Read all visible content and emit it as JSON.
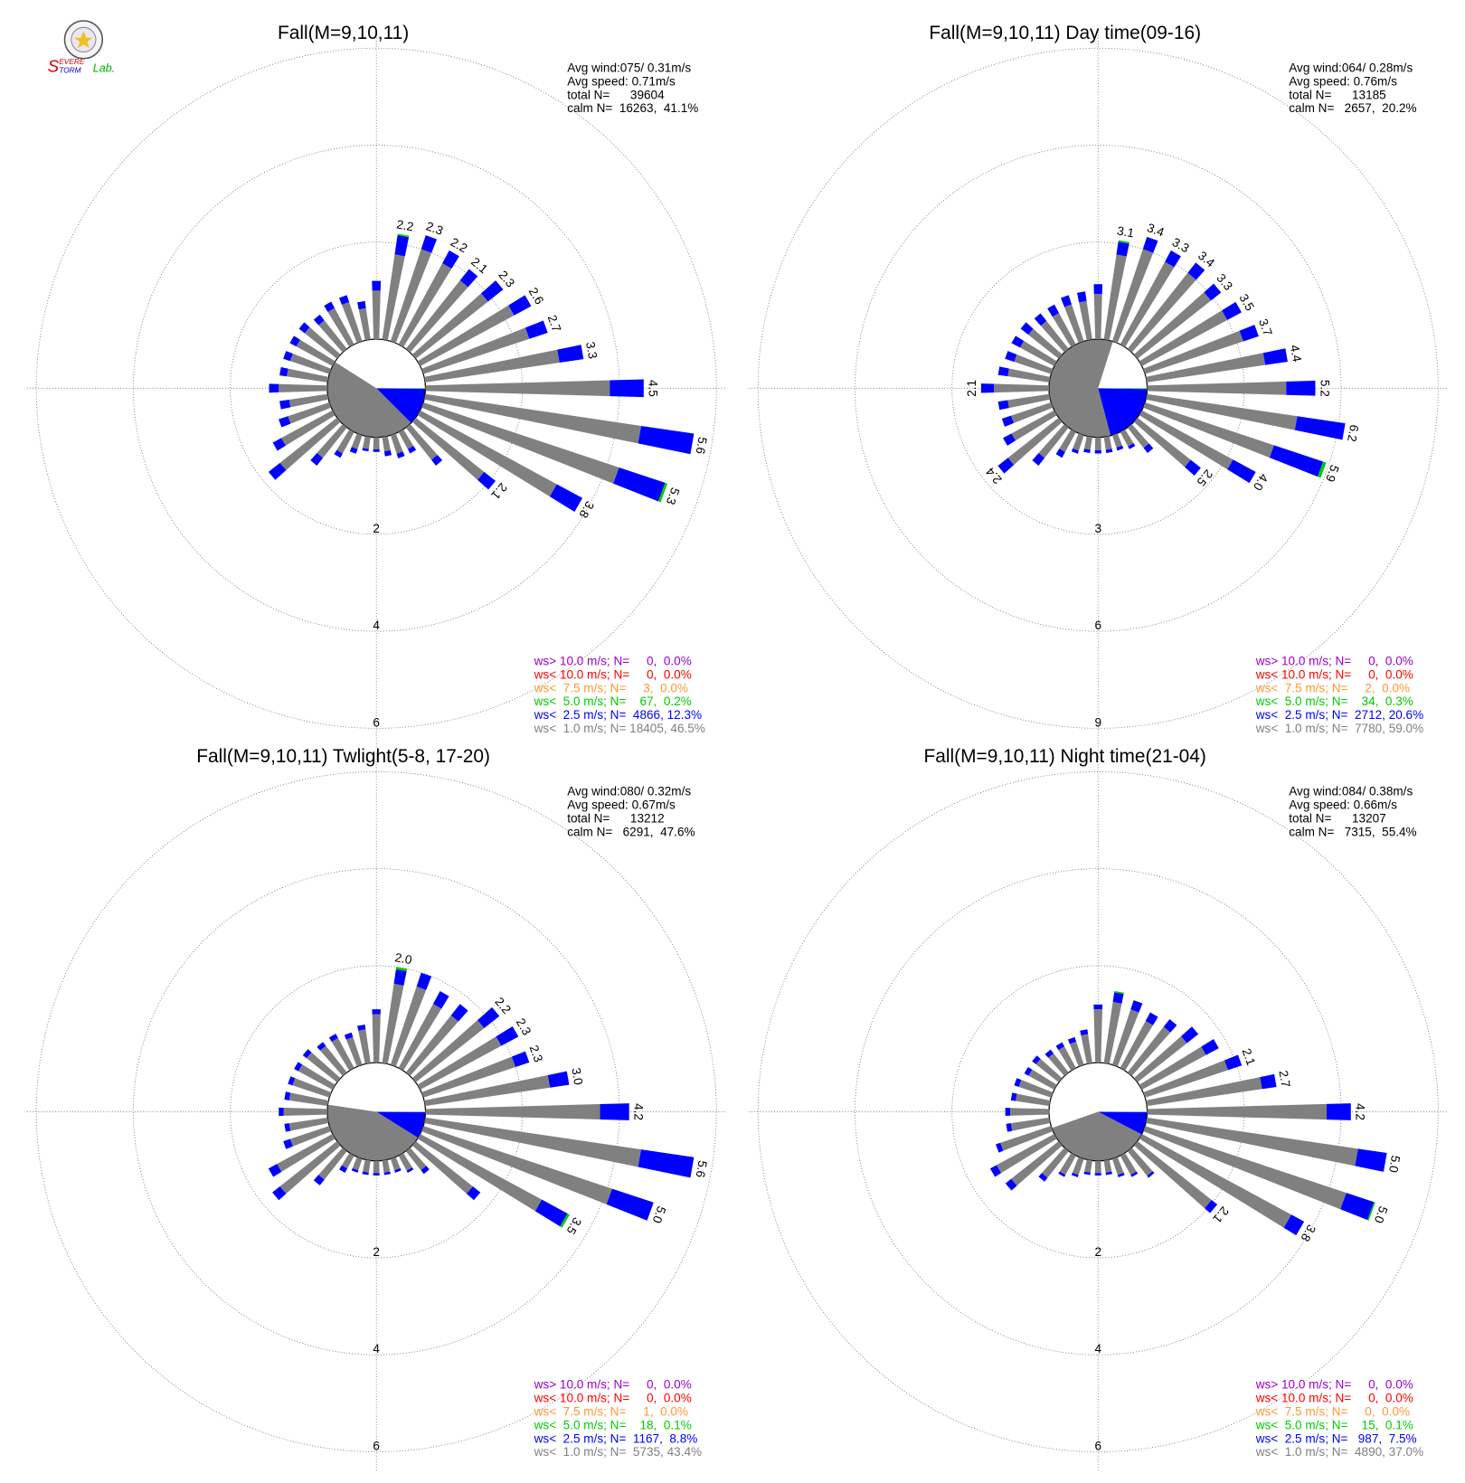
{
  "logo": {
    "line1": "EVERE",
    "line2": "TORM",
    "initial": "S",
    "lab": "Lab."
  },
  "chart_data": [
    {
      "type": "windrose",
      "title": "Fall(M=9,10,11)",
      "info": [
        "Avg wind:075/ 0.31m/s",
        "Avg speed: 0.71m/s",
        "total N=      39604",
        "calm N=  16263,  41.1%"
      ],
      "legend": [
        {
          "label": "ws> 10.0 m/s; N=     0,  0.0%",
          "value": 0.0,
          "color": "#9900cc"
        },
        {
          "label": "ws< 10.0 m/s; N=     0,  0.0%",
          "value": 0.0,
          "color": "#ff0000"
        },
        {
          "label": "ws<  7.5 m/s; N=     3,  0.0%",
          "value": 0.0,
          "color": "#ff9933"
        },
        {
          "label": "ws<  5.0 m/s; N=    67,  0.2%",
          "value": 0.2,
          "color": "#00cc00"
        },
        {
          "label": "ws<  2.5 m/s; N=  4866, 12.3%",
          "value": 12.3,
          "color": "#0000ff"
        },
        {
          "label": "ws<  1.0 m/s; N= 18405, 46.5%",
          "value": 46.5,
          "color": "#808080"
        }
      ],
      "x": [
        0,
        10,
        20,
        30,
        40,
        50,
        60,
        70,
        80,
        90,
        100,
        110,
        120,
        130,
        140,
        150,
        160,
        170,
        180,
        190,
        200,
        210,
        220,
        230,
        240,
        250,
        260,
        270,
        280,
        290,
        300,
        310,
        320,
        330,
        340,
        350
      ],
      "series": [
        {
          "color": "#808080",
          "values": [
            1.0,
            1.77,
            2.0,
            1.9,
            1.8,
            1.9,
            2.2,
            2.3,
            2.8,
            3.8,
            4.5,
            4.25,
            3.2,
            1.8,
            0.85,
            0.4,
            0.4,
            0.3,
            0.25,
            0.25,
            0.3,
            0.5,
            0.8,
            1.5,
            1.2,
            0.9,
            0.8,
            1.0,
            0.85,
            0.85,
            0.85,
            0.85,
            0.75,
            0.85,
            0.85,
            0.65
          ]
        },
        {
          "color": "#0000ff",
          "values": [
            0.2,
            0.4,
            0.3,
            0.3,
            0.3,
            0.4,
            0.4,
            0.4,
            0.5,
            0.7,
            1.1,
            1.0,
            0.6,
            0.3,
            0.15,
            0.1,
            0.1,
            0.1,
            0.05,
            0.05,
            0.1,
            0.1,
            0.2,
            0.3,
            0.2,
            0.2,
            0.2,
            0.2,
            0.15,
            0.15,
            0.15,
            0.15,
            0.15,
            0.15,
            0.15,
            0.15
          ]
        },
        {
          "color": "#00cc00",
          "values": [
            0,
            0.03,
            0,
            0,
            0,
            0,
            0,
            0,
            0,
            0,
            0,
            0.05,
            0,
            0,
            0,
            0,
            0,
            0,
            0,
            0,
            0,
            0,
            0,
            0,
            0,
            0,
            0,
            0,
            0,
            0,
            0,
            0,
            0,
            0,
            0,
            0
          ]
        }
      ],
      "bar_labels": [
        null,
        "2.2",
        "2.3",
        "2.2",
        "2.1",
        "2.3",
        "2.6",
        "2.7",
        "3.3",
        "4.5",
        "5.6",
        "5.3",
        "3.8",
        "2.1",
        null,
        null,
        null,
        null,
        null,
        null,
        null,
        null,
        null,
        null,
        null,
        null,
        null,
        null,
        null,
        null,
        null,
        null,
        null,
        null,
        null,
        null
      ],
      "rlim": [
        0,
        6
      ],
      "rticks": [
        2,
        4,
        6
      ]
    },
    {
      "type": "windrose",
      "title": "Fall(M=9,10,11) Day time(09-16)",
      "info": [
        "Avg wind:064/ 0.28m/s",
        "Avg speed: 0.76m/s",
        "total N=      13185",
        "calm N=   2657,  20.2%"
      ],
      "legend": [
        {
          "label": "ws> 10.0 m/s; N=     0,  0.0%",
          "value": 0.0,
          "color": "#9900cc"
        },
        {
          "label": "ws< 10.0 m/s; N=     0,  0.0%",
          "value": 0.0,
          "color": "#ff0000"
        },
        {
          "label": "ws<  7.5 m/s; N=     2,  0.0%",
          "value": 0.0,
          "color": "#ff9933"
        },
        {
          "label": "ws<  5.0 m/s; N=    34,  0.3%",
          "value": 0.3,
          "color": "#00cc00"
        },
        {
          "label": "ws<  2.5 m/s; N=  2712, 20.6%",
          "value": 20.6,
          "color": "#0000ff"
        },
        {
          "label": "ws<  1.0 m/s; N=  7780, 59.0%",
          "value": 59.0,
          "color": "#808080"
        }
      ],
      "x": [
        0,
        10,
        20,
        30,
        40,
        50,
        60,
        70,
        80,
        90,
        100,
        110,
        120,
        130,
        140,
        150,
        160,
        170,
        180,
        190,
        200,
        210,
        220,
        230,
        240,
        250,
        260,
        270,
        280,
        290,
        300,
        310,
        320,
        330,
        340,
        350
      ],
      "series": [
        {
          "color": "#808080",
          "values": [
            1.4,
            2.65,
            3.0,
            2.9,
            3.0,
            2.9,
            3.0,
            3.2,
            3.7,
            4.3,
            4.7,
            4.2,
            3.2,
            2.1,
            0.8,
            0.5,
            0.4,
            0.4,
            0.4,
            0.4,
            0.5,
            0.7,
            1.2,
            2.0,
            1.5,
            1.3,
            1.3,
            1.7,
            1.3,
            1.2,
            1.2,
            1.2,
            1.1,
            1.1,
            1.2,
            1.2
          ]
        },
        {
          "color": "#0000ff",
          "values": [
            0.3,
            0.4,
            0.4,
            0.4,
            0.4,
            0.4,
            0.5,
            0.5,
            0.7,
            0.9,
            1.5,
            1.6,
            0.8,
            0.4,
            0.2,
            0.1,
            0.1,
            0.1,
            0.1,
            0.1,
            0.1,
            0.2,
            0.3,
            0.4,
            0.3,
            0.3,
            0.3,
            0.4,
            0.3,
            0.3,
            0.3,
            0.3,
            0.3,
            0.3,
            0.3,
            0.3
          ]
        },
        {
          "color": "#00cc00",
          "values": [
            0,
            0.05,
            0,
            0,
            0,
            0,
            0,
            0,
            0,
            0,
            0,
            0.1,
            0,
            0,
            0,
            0,
            0,
            0,
            0,
            0,
            0,
            0,
            0,
            0,
            0,
            0,
            0,
            0,
            0,
            0,
            0,
            0,
            0,
            0,
            0,
            0
          ]
        }
      ],
      "bar_labels": [
        null,
        "3.1",
        "3.4",
        "3.3",
        "3.4",
        "3.3",
        "3.5",
        "3.7",
        "4.4",
        "5.2",
        "6.2",
        "5.9",
        "4.0",
        "2.5",
        null,
        null,
        null,
        null,
        null,
        null,
        null,
        null,
        null,
        "2.4",
        null,
        null,
        null,
        "2.1",
        null,
        null,
        null,
        null,
        null,
        null,
        null,
        null
      ],
      "rlim": [
        0,
        9
      ],
      "rticks": [
        3,
        6,
        9
      ]
    },
    {
      "type": "windrose",
      "title": "Fall(M=9,10,11) Twlight(5-8, 17-20)",
      "info": [
        "Avg wind:080/ 0.32m/s",
        "Avg speed: 0.67m/s",
        "total N=      13212",
        "calm N=   6291,  47.6%"
      ],
      "legend": [
        {
          "label": "ws> 10.0 m/s; N=     0,  0.0%",
          "value": 0.0,
          "color": "#9900cc"
        },
        {
          "label": "ws< 10.0 m/s; N=     0,  0.0%",
          "value": 0.0,
          "color": "#ff0000"
        },
        {
          "label": "ws<  7.5 m/s; N=     1,  0.0%",
          "value": 0.0,
          "color": "#ff9933"
        },
        {
          "label": "ws<  5.0 m/s; N=    18,  0.1%",
          "value": 0.1,
          "color": "#00cc00"
        },
        {
          "label": "ws<  2.5 m/s; N=  1167,  8.8%",
          "value": 8.8,
          "color": "#0000ff"
        },
        {
          "label": "ws<  1.0 m/s; N=  5735, 43.4%",
          "value": 43.4,
          "color": "#808080"
        }
      ],
      "x": [
        0,
        10,
        20,
        30,
        40,
        50,
        60,
        70,
        80,
        90,
        100,
        110,
        120,
        130,
        140,
        150,
        160,
        170,
        180,
        190,
        200,
        210,
        220,
        230,
        240,
        250,
        260,
        270,
        280,
        290,
        300,
        310,
        320,
        330,
        340,
        350
      ],
      "series": [
        {
          "color": "#808080",
          "values": [
            1.0,
            1.65,
            1.7,
            1.5,
            1.5,
            1.8,
            1.9,
            2.0,
            2.6,
            3.6,
            4.5,
            4.1,
            2.85,
            1.5,
            0.5,
            0.35,
            0.25,
            0.25,
            0.25,
            0.25,
            0.25,
            0.3,
            0.75,
            1.5,
            1.3,
            0.85,
            0.8,
            0.9,
            0.8,
            0.8,
            0.8,
            0.8,
            0.7,
            0.7,
            0.6,
            0.7
          ]
        },
        {
          "color": "#0000ff",
          "values": [
            0.1,
            0.3,
            0.3,
            0.3,
            0.3,
            0.4,
            0.4,
            0.3,
            0.4,
            0.6,
            1.1,
            0.9,
            0.6,
            0.2,
            0.1,
            0.05,
            0.05,
            0.05,
            0.05,
            0.05,
            0.05,
            0.1,
            0.15,
            0.2,
            0.2,
            0.15,
            0.1,
            0.1,
            0.1,
            0.1,
            0.1,
            0.1,
            0.1,
            0.1,
            0.1,
            0.1
          ]
        },
        {
          "color": "#00cc00",
          "values": [
            0,
            0.05,
            0,
            0,
            0,
            0,
            0,
            0,
            0,
            0,
            0,
            0,
            0.05,
            0,
            0,
            0,
            0,
            0,
            0,
            0,
            0,
            0,
            0,
            0,
            0,
            0,
            0,
            0,
            0,
            0,
            0,
            0,
            0,
            0,
            0,
            0
          ]
        }
      ],
      "bar_labels": [
        null,
        "2.0",
        null,
        null,
        null,
        "2.2",
        "2.3",
        "2.3",
        "3.0",
        "4.2",
        "5.6",
        "5.0",
        "3.5",
        null,
        null,
        null,
        null,
        null,
        null,
        null,
        null,
        null,
        null,
        null,
        null,
        null,
        null,
        null,
        null,
        null,
        null,
        null,
        null,
        null,
        null,
        null
      ],
      "rlim": [
        0,
        6
      ],
      "rticks": [
        2,
        4,
        6
      ]
    },
    {
      "type": "windrose",
      "title": "Fall(M=9,10,11) Night time(21-04)",
      "info": [
        "Avg wind:084/ 0.38m/s",
        "Avg speed: 0.66m/s",
        "total N=      13207",
        "calm N=   7315,  55.4%"
      ],
      "legend": [
        {
          "label": "ws> 10.0 m/s; N=     0,  0.0%",
          "value": 0.0,
          "color": "#9900cc"
        },
        {
          "label": "ws< 10.0 m/s; N=     0,  0.0%",
          "value": 0.0,
          "color": "#ff0000"
        },
        {
          "label": "ws<  7.5 m/s; N=     0,  0.0%",
          "value": 0.0,
          "color": "#ff9933"
        },
        {
          "label": "ws<  5.0 m/s; N=    15,  0.1%",
          "value": 0.1,
          "color": "#00cc00"
        },
        {
          "label": "ws<  2.5 m/s; N=   987,  7.5%",
          "value": 7.5,
          "color": "#0000ff"
        },
        {
          "label": "ws<  1.0 m/s; N=  4890, 37.0%",
          "value": 37.0,
          "color": "#808080"
        }
      ],
      "x": [
        0,
        10,
        20,
        30,
        40,
        50,
        60,
        70,
        80,
        90,
        100,
        110,
        120,
        130,
        140,
        150,
        160,
        170,
        180,
        190,
        200,
        210,
        220,
        230,
        240,
        250,
        260,
        270,
        280,
        290,
        300,
        310,
        320,
        330,
        340,
        350
      ],
      "series": [
        {
          "color": "#808080",
          "values": [
            1.1,
            1.27,
            1.2,
            1.1,
            1.2,
            1.3,
            1.5,
            1.8,
            2.4,
            3.7,
            4.4,
            4.37,
            3.5,
            1.95,
            0.65,
            0.45,
            0.35,
            0.25,
            0.25,
            0.25,
            0.35,
            0.45,
            0.7,
            1.25,
            1.35,
            1.1,
            0.8,
            0.8,
            0.7,
            0.7,
            0.6,
            0.6,
            0.5,
            0.5,
            0.5,
            0.6
          ]
        },
        {
          "color": "#0000ff",
          "values": [
            0.1,
            0.2,
            0.2,
            0.2,
            0.2,
            0.3,
            0.3,
            0.3,
            0.3,
            0.5,
            0.6,
            0.6,
            0.3,
            0.15,
            0.05,
            0.05,
            0.05,
            0.05,
            0.05,
            0.05,
            0.05,
            0.05,
            0.1,
            0.15,
            0.15,
            0.1,
            0.1,
            0.1,
            0.1,
            0.1,
            0.1,
            0.1,
            0.1,
            0.1,
            0.1,
            0.1
          ]
        },
        {
          "color": "#00cc00",
          "values": [
            0,
            0.03,
            0,
            0,
            0,
            0,
            0,
            0,
            0,
            0,
            0,
            0.03,
            0,
            0,
            0,
            0,
            0,
            0,
            0,
            0,
            0,
            0,
            0,
            0,
            0,
            0,
            0,
            0,
            0,
            0,
            0,
            0,
            0,
            0,
            0,
            0
          ]
        }
      ],
      "bar_labels": [
        null,
        null,
        null,
        null,
        null,
        null,
        null,
        "2.1",
        "2.7",
        "4.2",
        "5.0",
        "5.0",
        "3.8",
        "2.1",
        null,
        null,
        null,
        null,
        null,
        null,
        null,
        null,
        null,
        null,
        null,
        null,
        null,
        null,
        null,
        null,
        null,
        null,
        null,
        null,
        null,
        null
      ],
      "rlim": [
        0,
        6
      ],
      "rticks": [
        2,
        4,
        6
      ]
    }
  ]
}
